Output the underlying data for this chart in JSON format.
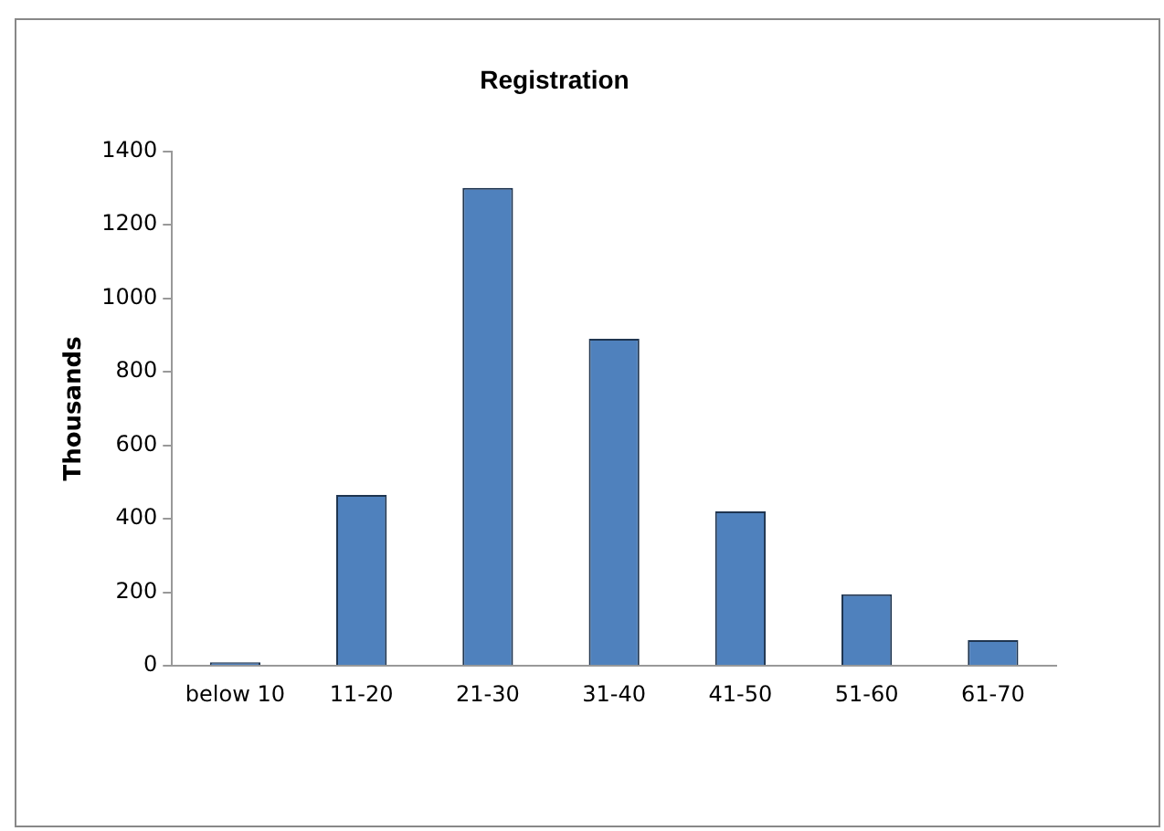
{
  "chart_data": {
    "type": "bar",
    "title": "Registration",
    "ylabel": "Thousands",
    "categories": [
      "below 10",
      "11-20",
      "21-30",
      "31-40",
      "41-50",
      "51-60",
      "61-70"
    ],
    "values": [
      10,
      465,
      1300,
      890,
      420,
      195,
      70
    ],
    "color": "#4f81bd",
    "ylim": [
      0,
      1400
    ],
    "yticks": [
      0,
      200,
      400,
      600,
      800,
      1000,
      1200,
      1400
    ],
    "grid": false,
    "legend": false
  }
}
